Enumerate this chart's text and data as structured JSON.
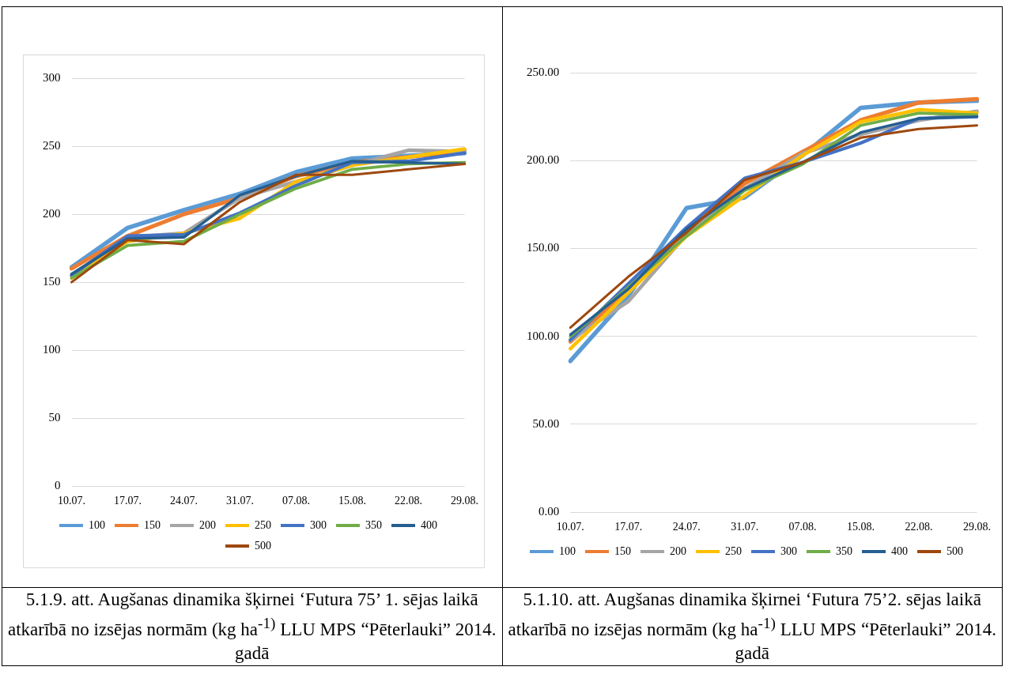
{
  "chart_data": [
    {
      "type": "line",
      "categories": [
        "10.07.",
        "17.07.",
        "24.07.",
        "31.07.",
        "07.08.",
        "15.08.",
        "22.08.",
        "29.08."
      ],
      "series": [
        {
          "name": "100",
          "color": "#5b9bd5",
          "values": [
            161,
            190,
            203,
            215,
            231,
            241,
            243,
            245
          ]
        },
        {
          "name": "150",
          "color": "#ed7d31",
          "values": [
            160,
            184,
            200,
            212,
            228,
            238,
            242,
            247
          ]
        },
        {
          "name": "200",
          "color": "#a5a5a5",
          "values": [
            155,
            183,
            186,
            212,
            224,
            236,
            247,
            246
          ]
        },
        {
          "name": "250",
          "color": "#ffc000",
          "values": [
            153,
            180,
            186,
            197,
            224,
            236,
            242,
            248
          ]
        },
        {
          "name": "300",
          "color": "#4472c4",
          "values": [
            155,
            184,
            185,
            201,
            221,
            238,
            239,
            245
          ]
        },
        {
          "name": "350",
          "color": "#70ad47",
          "values": [
            153,
            177,
            180,
            200,
            219,
            233,
            237,
            238
          ]
        },
        {
          "name": "400",
          "color": "#255e91",
          "values": [
            156,
            182,
            183,
            214,
            228,
            239,
            238,
            237
          ]
        },
        {
          "name": "500",
          "color": "#9e480e",
          "values": [
            150,
            181,
            178,
            209,
            229,
            229,
            233,
            237
          ]
        }
      ],
      "ylim": [
        0,
        300
      ],
      "yticks": [
        0,
        50,
        100,
        150,
        200,
        250,
        300
      ],
      "grid": "y",
      "legend": "bottom",
      "marker": "none",
      "line_style": "solid",
      "annotations": [
        "5.1.9. att. Augšanas dinamika šķirnei ‘Futura 75’ 1. sējas laikā atkarībā no izsējas normām (kg ha$^{-1)}$  LLU MPS “Pēterlauki” 2014. gadā"
      ]
    },
    {
      "type": "line",
      "categories": [
        "10.07.",
        "17.07.",
        "24.07.",
        "31.07.",
        "07.08.",
        "15.08.",
        "22.08.",
        "29.08."
      ],
      "series": [
        {
          "name": "100",
          "color": "#5b9bd5",
          "values": [
            86,
            123,
            173,
            179,
            203,
            230,
            233,
            234
          ]
        },
        {
          "name": "150",
          "color": "#ed7d31",
          "values": [
            97,
            126,
            160,
            187,
            205,
            223,
            233,
            235
          ]
        },
        {
          "name": "200",
          "color": "#a5a5a5",
          "values": [
            98,
            120,
            158,
            184,
            204,
            215,
            223,
            228
          ]
        },
        {
          "name": "250",
          "color": "#ffc000",
          "values": [
            93,
            125,
            157,
            180,
            203,
            222,
            229,
            227
          ]
        },
        {
          "name": "300",
          "color": "#4472c4",
          "values": [
            98,
            130,
            162,
            190,
            199,
            210,
            224,
            225
          ]
        },
        {
          "name": "350",
          "color": "#70ad47",
          "values": [
            100,
            128,
            157,
            183,
            198,
            220,
            227,
            226
          ]
        },
        {
          "name": "400",
          "color": "#255e91",
          "values": [
            101,
            127,
            161,
            184,
            199,
            216,
            224,
            225
          ]
        },
        {
          "name": "500",
          "color": "#9e480e",
          "values": [
            105,
            134,
            159,
            189,
            199,
            213,
            218,
            220
          ]
        }
      ],
      "ylim": [
        0,
        250
      ],
      "yticks": [
        {
          "value": 0,
          "label": "0.00"
        },
        {
          "value": 50,
          "label": "50.00"
        },
        {
          "value": 100,
          "label": "100.00"
        },
        {
          "value": 150,
          "label": "150.00"
        },
        {
          "value": 200,
          "label": "200.00"
        },
        {
          "value": 250,
          "label": "250.00"
        }
      ],
      "grid": "y",
      "legend": "bottom",
      "marker": "none",
      "line_style": "solid",
      "annotations": [
        "5.1.10. att. Augšanas dinamika šķirnei ‘Futura 75’2. sējas laikā atkarībā no izsējas normām (kg ha$^{-1)}$  LLU MPS “Pēterlauki” 2014. gadā"
      ]
    }
  ]
}
